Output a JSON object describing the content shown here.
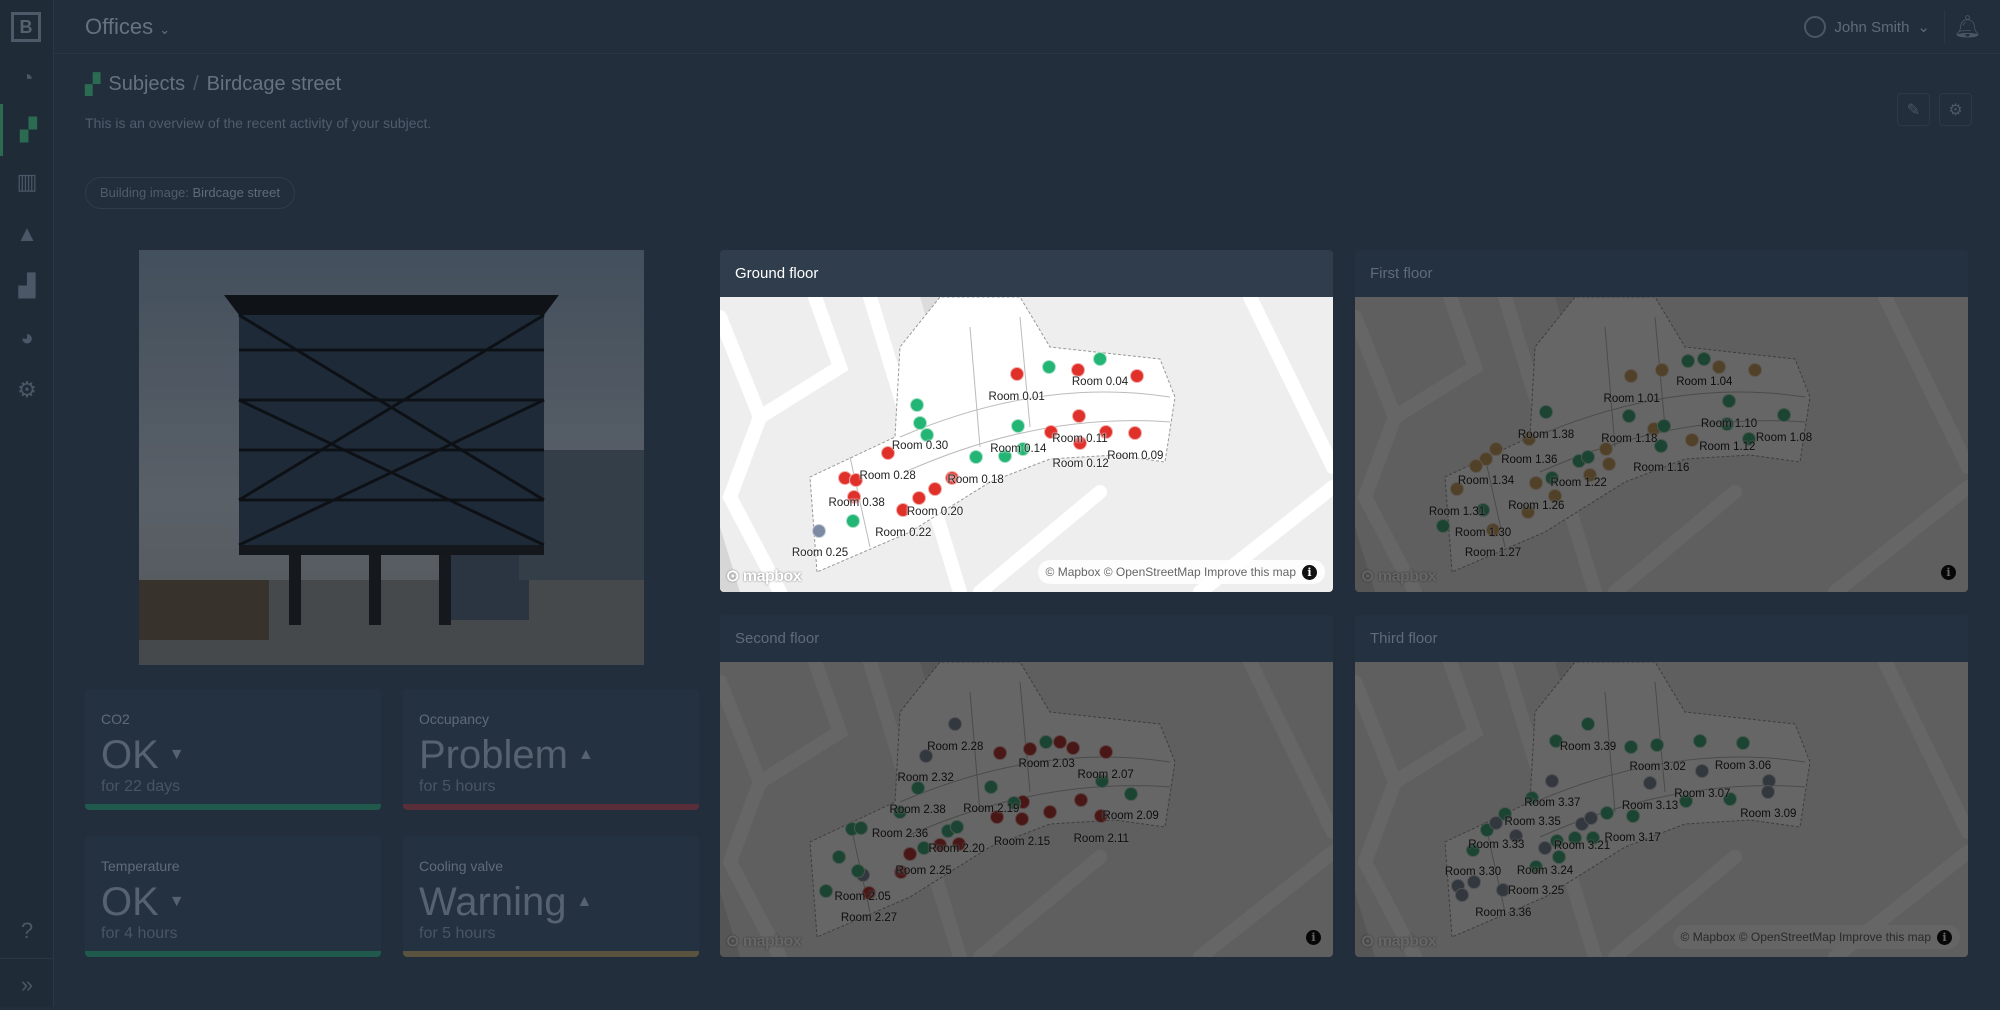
{
  "app": {
    "title": "Offices",
    "user": "John Smith"
  },
  "sidebar": {
    "logo": "B",
    "items": [
      {
        "icon": "dashboard-icon"
      },
      {
        "icon": "subjects-icon",
        "active": true
      },
      {
        "icon": "map-icon"
      },
      {
        "icon": "alert-icon"
      },
      {
        "icon": "chart-icon"
      },
      {
        "icon": "pie-chart-icon"
      },
      {
        "icon": "settings-icon"
      }
    ],
    "bottom": [
      {
        "icon": "help-icon"
      },
      {
        "icon": "expand-icon"
      }
    ]
  },
  "breadcrumb": {
    "root": "Subjects",
    "separator": "/",
    "current": "Birdcage street"
  },
  "subtitle": "This is an overview of the recent activity of your subject.",
  "chip": {
    "label": "Building image:",
    "value": "Birdcage street"
  },
  "stats": [
    {
      "label": "CO2",
      "value": "OK",
      "trend": "down",
      "sub": "for 22 days",
      "status": "ok"
    },
    {
      "label": "Occupancy",
      "value": "Problem",
      "trend": "up",
      "sub": "for 5 hours",
      "status": "problem"
    },
    {
      "label": "Temperature",
      "value": "OK",
      "trend": "down",
      "sub": "for 4 hours",
      "status": "ok"
    },
    {
      "label": "Cooling valve",
      "value": "Warning",
      "trend": "up",
      "sub": "for 5 hours",
      "status": "warning"
    }
  ],
  "status_colors": {
    "ok": "#22b573",
    "problem": "#e0302a",
    "warning": "#d9a14a",
    "unknown": "#7d8aa3"
  },
  "map_attribution": {
    "logo": "mapbox",
    "text": "© Mapbox © OpenStreetMap Improve this map"
  },
  "floors": [
    {
      "title": "Ground floor",
      "highlighted": true,
      "attribution": true,
      "rooms": [
        "Room 0.01",
        "Room 0.04",
        "Room 0.30",
        "Room 0.14",
        "Room 0.11",
        "Room 0.12",
        "Room 0.09",
        "Room 0.28",
        "Room 0.18",
        "Room 0.38",
        "Room 0.20",
        "Room 0.22",
        "Room 0.25"
      ]
    },
    {
      "title": "First floor",
      "highlighted": false,
      "attribution": false,
      "rooms": [
        "Room 1.04",
        "Room 1.01",
        "Room 1.38",
        "Room 1.18",
        "Room 1.10",
        "Room 1.08",
        "Room 1.12",
        "Room 1.36",
        "Room 1.16",
        "Room 1.34",
        "Room 1.22",
        "Room 1.26",
        "Room 1.31",
        "Room 1.30",
        "Room 1.27"
      ]
    },
    {
      "title": "Second floor",
      "highlighted": false,
      "attribution": false,
      "rooms": [
        "Room 2.28",
        "Room 2.03",
        "Room 2.32",
        "Room 2.07",
        "Room 2.38",
        "Room 2.19",
        "Room 2.09",
        "Room 2.36",
        "Room 2.15",
        "Room 2.11",
        "Room 2.20",
        "Room 2.25",
        "Room 2.05",
        "Room 2.27"
      ]
    },
    {
      "title": "Third floor",
      "highlighted": false,
      "attribution": true,
      "rooms": [
        "Room 3.39",
        "Room 3.02",
        "Room 3.06",
        "Room 3.07",
        "Room 3.37",
        "Room 3.13",
        "Room 3.09",
        "Room 3.35",
        "Room 3.33",
        "Room 3.21",
        "Room 3.17",
        "Room 3.30",
        "Room 3.24",
        "Room 3.25",
        "Room 3.36"
      ]
    }
  ]
}
